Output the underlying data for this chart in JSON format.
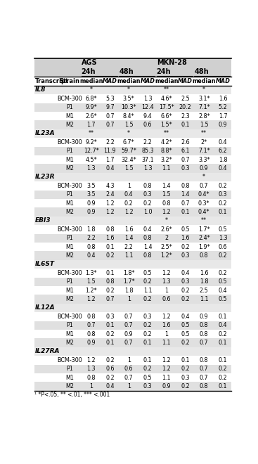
{
  "sections": [
    {
      "name": "IL8",
      "sig": [
        "*",
        "",
        "*",
        "",
        "**",
        "",
        "*",
        ""
      ],
      "rows": [
        {
          "strain": "BCM-300",
          "vals": [
            "6.8*",
            "5.3",
            "3.5*",
            "1.3",
            "4.6*",
            "2.5",
            "3.1*",
            "1.6"
          ],
          "shade": false
        },
        {
          "strain": "P1",
          "vals": [
            "9.9*",
            "9.7",
            "10.3*",
            "12.4",
            "17.5*",
            "20.2",
            "7.1*",
            "5.2"
          ],
          "shade": true
        },
        {
          "strain": "M1",
          "vals": [
            "2.6*",
            "0.7",
            "8.4*",
            "9.4",
            "6.6*",
            "2.3",
            "2.8*",
            "1.7"
          ],
          "shade": false
        },
        {
          "strain": "M2",
          "vals": [
            "1.7",
            "0.7",
            "1.5",
            "0.6",
            "1.5*",
            "0.1",
            "1.5",
            "0.9"
          ],
          "shade": true
        }
      ]
    },
    {
      "name": "IL23A",
      "sig": [
        "**",
        "",
        "*",
        "",
        "**",
        "",
        "**",
        ""
      ],
      "rows": [
        {
          "strain": "BCM-300",
          "vals": [
            "9.2*",
            "2.2",
            "6.7*",
            "2.2",
            "4.2*",
            "2.6",
            "2*",
            "0.4"
          ],
          "shade": false
        },
        {
          "strain": "P1",
          "vals": [
            "12.7*",
            "11.9",
            "59.7*",
            "85.3",
            "8.8*",
            "6.1",
            "7.1*",
            "6.2"
          ],
          "shade": true
        },
        {
          "strain": "M1",
          "vals": [
            "4.5*",
            "1.7",
            "32.4*",
            "37.1",
            "3.2*",
            "0.7",
            "3.3*",
            "1.8"
          ],
          "shade": false
        },
        {
          "strain": "M2",
          "vals": [
            "1.3",
            "0.4",
            "1.5",
            "1.3",
            "1.1",
            "0.3",
            "0.9",
            "0.4"
          ],
          "shade": true
        }
      ]
    },
    {
      "name": "IL23R",
      "sig": [
        "",
        "",
        "",
        "",
        "",
        "",
        "*",
        ""
      ],
      "rows": [
        {
          "strain": "BCM-300",
          "vals": [
            "3.5",
            "4.3",
            "1",
            "0.8",
            "1.4",
            "0.8",
            "0.7",
            "0.2"
          ],
          "shade": false
        },
        {
          "strain": "P1",
          "vals": [
            "3.5",
            "2.4",
            "0.4",
            "0.3",
            "1.5",
            "1.4",
            "0.4*",
            "0.3"
          ],
          "shade": true
        },
        {
          "strain": "M1",
          "vals": [
            "0.9",
            "1.2",
            "0.2",
            "0.2",
            "0.8",
            "0.7",
            "0.3*",
            "0.2"
          ],
          "shade": false
        },
        {
          "strain": "M2",
          "vals": [
            "0.9",
            "1.2",
            "1.2",
            "1.0",
            "1.2",
            "0.1",
            "0.4*",
            "0.1"
          ],
          "shade": true
        }
      ]
    },
    {
      "name": "EBI3",
      "sig": [
        "",
        "",
        "",
        "",
        "*",
        "",
        "**",
        ""
      ],
      "rows": [
        {
          "strain": "BCM-300",
          "vals": [
            "1.8",
            "0.8",
            "1.6",
            "0.4",
            "2.6*",
            "0.5",
            "1.7*",
            "0.5"
          ],
          "shade": false
        },
        {
          "strain": "P1",
          "vals": [
            "2.2",
            "1.6",
            "1.4",
            "0.8",
            "2",
            "1.6",
            "2.4*",
            "1.3"
          ],
          "shade": true
        },
        {
          "strain": "M1",
          "vals": [
            "0.8",
            "0.1",
            "2.2",
            "1.4",
            "2.5*",
            "0.2",
            "1.9*",
            "0.6"
          ],
          "shade": false
        },
        {
          "strain": "M2",
          "vals": [
            "0.4",
            "0.2",
            "1.1",
            "0.8",
            "1.2*",
            "0.3",
            "0.8",
            "0.2"
          ],
          "shade": true
        }
      ]
    },
    {
      "name": "IL6ST",
      "sig": [
        "",
        "",
        "",
        "",
        "",
        "",
        "",
        ""
      ],
      "rows": [
        {
          "strain": "BCM-300",
          "vals": [
            "1.3*",
            "0.1",
            "1.8*",
            "0.5",
            "1.2",
            "0.4",
            "1.6",
            "0.2"
          ],
          "shade": false
        },
        {
          "strain": "P1",
          "vals": [
            "1.5",
            "0.8",
            "1.7*",
            "0.2",
            "1.3",
            "0.3",
            "1.8",
            "0.5"
          ],
          "shade": true
        },
        {
          "strain": "M1",
          "vals": [
            "1.2*",
            "0.2",
            "1.8",
            "1.1",
            "1",
            "0.2",
            "2.5",
            "0.4"
          ],
          "shade": false
        },
        {
          "strain": "M2",
          "vals": [
            "1.2",
            "0.7",
            "1",
            "0.2",
            "0.6",
            "0.2",
            "1.1",
            "0.5"
          ],
          "shade": true
        }
      ]
    },
    {
      "name": "IL12A",
      "sig": [
        "",
        "",
        "",
        "",
        "",
        "",
        "",
        ""
      ],
      "rows": [
        {
          "strain": "BCM-300",
          "vals": [
            "0.8",
            "0.3",
            "0.7",
            "0.3",
            "1.2",
            "0.4",
            "0.9",
            "0.1"
          ],
          "shade": false
        },
        {
          "strain": "P1",
          "vals": [
            "0.7",
            "0.1",
            "0.7",
            "0.2",
            "1.6",
            "0.5",
            "0.8",
            "0.4"
          ],
          "shade": true
        },
        {
          "strain": "M1",
          "vals": [
            "0.8",
            "0.2",
            "0.9",
            "0.2",
            "1",
            "0.5",
            "0.8",
            "0.2"
          ],
          "shade": false
        },
        {
          "strain": "M2",
          "vals": [
            "0.9",
            "0.1",
            "0.7",
            "0.1",
            "1.1",
            "0.2",
            "0.7",
            "0.1"
          ],
          "shade": true
        }
      ]
    },
    {
      "name": "IL27RA",
      "sig": [
        "",
        "",
        "",
        "",
        "",
        "",
        "",
        ""
      ],
      "rows": [
        {
          "strain": "BCM-300",
          "vals": [
            "1.2",
            "0.2",
            "1",
            "0.1",
            "1.2",
            "0.1",
            "0.8",
            "0.1"
          ],
          "shade": false
        },
        {
          "strain": "P1",
          "vals": [
            "1.3",
            "0.6",
            "0.6",
            "0.2",
            "1.2",
            "0.2",
            "0.7",
            "0.2"
          ],
          "shade": true
        },
        {
          "strain": "M1",
          "vals": [
            "0.8",
            "0.2",
            "0.7",
            "0.5",
            "1.1",
            "0.3",
            "0.7",
            "0.2"
          ],
          "shade": false
        },
        {
          "strain": "M2",
          "vals": [
            "1",
            "0.4",
            "1",
            "0.3",
            "0.9",
            "0.2",
            "0.8",
            "0.1"
          ],
          "shade": true
        }
      ]
    }
  ],
  "footnote": "¹ *P<.05, ** <.01, *** <.001",
  "row_shade": "#e0e0e0",
  "header_row_shade": "#d0d0d0",
  "section_name_shade": "#e8e8e8"
}
